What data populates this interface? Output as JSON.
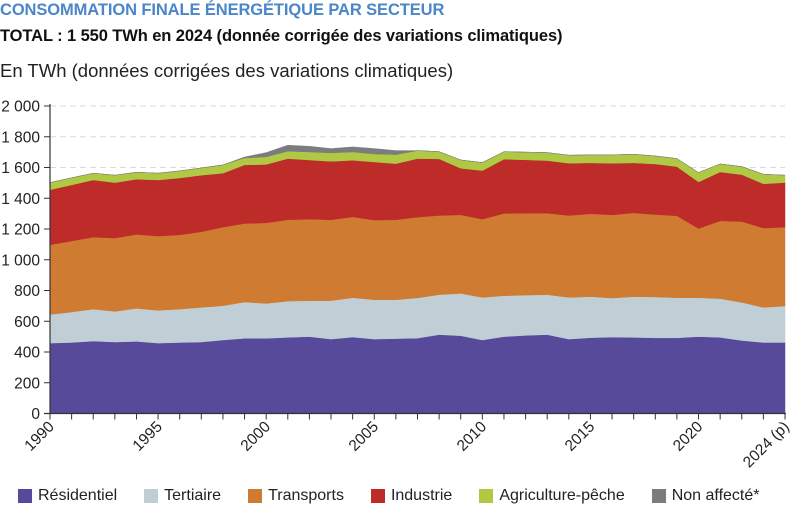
{
  "header": {
    "title": "CONSOMMATION FINALE ÉNERGÉTIQUE PAR SECTEUR",
    "subtitle": "TOTAL : 1 550 TWh en 2024 (donnée corrigée des variations climatiques)",
    "unit_label": "En TWh (données corrigées des variations climatiques)"
  },
  "chart_data": {
    "type": "area",
    "stacked": true,
    "title": "CONSOMMATION FINALE ÉNERGÉTIQUE PAR SECTEUR",
    "subtitle": "TOTAL : 1 550 TWh en 2024 (donnée corrigée des variations climatiques)",
    "xlabel": "",
    "ylabel": "En TWh (données corrigées des variations climatiques)",
    "ylim": [
      0,
      2000
    ],
    "yticks": [
      0,
      200,
      400,
      600,
      800,
      1000,
      1200,
      1400,
      1600,
      1800,
      2000
    ],
    "ytick_labels": [
      "0",
      "200",
      "400",
      "600",
      "800",
      "1 000",
      "1 200",
      "1 400",
      "1 600",
      "1 800",
      "2 000"
    ],
    "x": [
      1990,
      1991,
      1992,
      1993,
      1994,
      1995,
      1996,
      1997,
      1998,
      1999,
      2000,
      2001,
      2002,
      2003,
      2004,
      2005,
      2006,
      2007,
      2008,
      2009,
      2010,
      2011,
      2012,
      2013,
      2014,
      2015,
      2016,
      2017,
      2018,
      2019,
      2020,
      2021,
      2022,
      2023,
      2024
    ],
    "xlim": [
      1990,
      2024
    ],
    "xtick_labels": [
      {
        "year": 1990,
        "label": "1990"
      },
      {
        "year": 1995,
        "label": "1995"
      },
      {
        "year": 2000,
        "label": "2000"
      },
      {
        "year": 2005,
        "label": "2005"
      },
      {
        "year": 2010,
        "label": "2010"
      },
      {
        "year": 2015,
        "label": "2015"
      },
      {
        "year": 2020,
        "label": "2020"
      },
      {
        "year": 2024,
        "label": "2024 (p)"
      }
    ],
    "grid": "horizontal-dashed",
    "legend_position": "bottom",
    "series": [
      {
        "name": "Résidentiel",
        "color": "#574a9b",
        "values": [
          458,
          462,
          471,
          465,
          469,
          458,
          462,
          465,
          478,
          489,
          489,
          495,
          500,
          484,
          497,
          484,
          487,
          490,
          513,
          506,
          478,
          500,
          508,
          513,
          484,
          493,
          497,
          495,
          492,
          492,
          500,
          495,
          475,
          462,
          462
        ]
      },
      {
        "name": "Tertiaire",
        "color": "#c0ced6",
        "values": [
          186,
          198,
          208,
          199,
          215,
          213,
          217,
          225,
          223,
          236,
          227,
          236,
          234,
          250,
          256,
          256,
          253,
          262,
          260,
          275,
          277,
          266,
          262,
          260,
          271,
          267,
          254,
          265,
          266,
          261,
          253,
          252,
          248,
          228,
          237
        ]
      },
      {
        "name": "Transports",
        "color": "#cf7b31",
        "values": [
          453,
          462,
          468,
          477,
          481,
          483,
          483,
          492,
          511,
          511,
          524,
          529,
          530,
          526,
          526,
          518,
          520,
          525,
          515,
          511,
          509,
          535,
          533,
          530,
          533,
          539,
          541,
          545,
          536,
          533,
          450,
          506,
          526,
          516,
          513
        ]
      },
      {
        "name": "Industrie",
        "color": "#bd2c29",
        "values": [
          358,
          365,
          372,
          361,
          359,
          365,
          370,
          368,
          351,
          381,
          380,
          398,
          385,
          380,
          368,
          378,
          365,
          381,
          368,
          303,
          316,
          353,
          347,
          342,
          340,
          331,
          336,
          325,
          329,
          320,
          303,
          318,
          305,
          288,
          290
        ]
      },
      {
        "name": "Agriculture-pêche",
        "color": "#afc945",
        "values": [
          47,
          46,
          44,
          48,
          45,
          44,
          46,
          47,
          54,
          45,
          49,
          48,
          52,
          55,
          54,
          52,
          59,
          52,
          47,
          54,
          52,
          49,
          50,
          52,
          52,
          52,
          54,
          56,
          52,
          52,
          61,
          52,
          52,
          62,
          48
        ]
      },
      {
        "name": "Non affecté*",
        "color": "#7b7c7e",
        "values": [
          0,
          0,
          0,
          0,
          0,
          0,
          0,
          0,
          0,
          6,
          28,
          39,
          37,
          28,
          33,
          35,
          26,
          0,
          0,
          0,
          0,
          0,
          0,
          0,
          0,
          0,
          0,
          0,
          0,
          0,
          0,
          0,
          0,
          0,
          0
        ]
      }
    ]
  }
}
